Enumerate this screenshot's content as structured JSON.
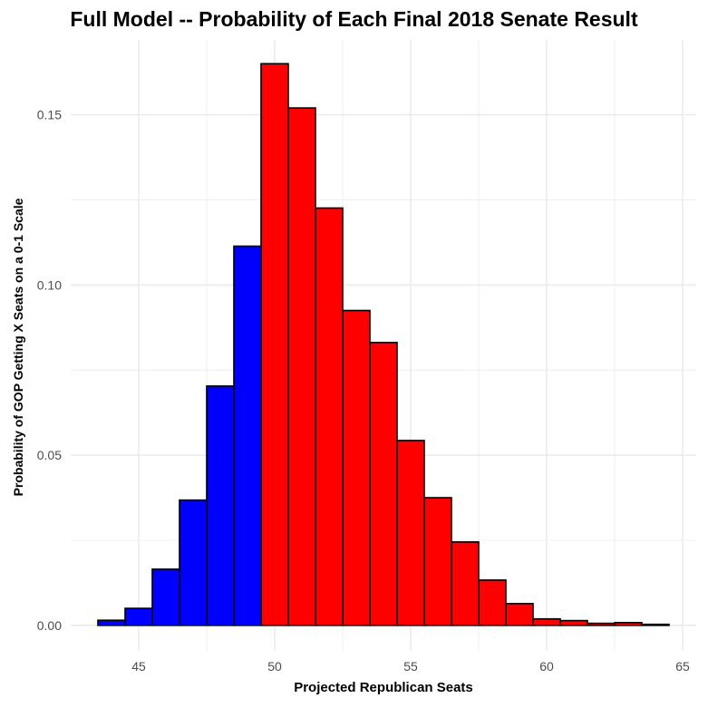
{
  "chart_data": {
    "type": "bar",
    "title": "Full Model -- Probability of Each Final 2018 Senate Result",
    "xlabel": "Projected Republican Seats",
    "ylabel": "Probability of GOP Getting X Seats on a 0-1 Scale",
    "x": [
      44,
      45,
      46,
      47,
      48,
      49,
      50,
      51,
      52,
      53,
      54,
      55,
      56,
      57,
      58,
      59,
      60,
      61,
      62,
      63,
      64
    ],
    "values": [
      0.0015,
      0.005,
      0.0165,
      0.0368,
      0.0703,
      0.1114,
      0.165,
      0.152,
      0.1226,
      0.0925,
      0.0831,
      0.0543,
      0.0375,
      0.0245,
      0.0133,
      0.0064,
      0.0019,
      0.0014,
      0.0006,
      0.0008,
      0.0003
    ],
    "bar_colors": [
      "#0000ff",
      "#0000ff",
      "#0000ff",
      "#0000ff",
      "#0000ff",
      "#0000ff",
      "#ff0000",
      "#ff0000",
      "#ff0000",
      "#ff0000",
      "#ff0000",
      "#ff0000",
      "#ff0000",
      "#ff0000",
      "#ff0000",
      "#ff0000",
      "#ff0000",
      "#ff0000",
      "#ff0000",
      "#ff0000",
      "#ff0000"
    ],
    "xlim": [
      42.5,
      65.5
    ],
    "ylim": [
      -0.0075,
      0.172
    ],
    "xticks": [
      "45",
      "50",
      "55",
      "60",
      "65"
    ],
    "yticks": [
      "0.00",
      "0.05",
      "0.10",
      "0.15"
    ],
    "grid": true,
    "colors": {
      "dem": "#0000ff",
      "gop": "#ff0000",
      "outline": "#000000",
      "grid": "#ebebeb"
    }
  }
}
